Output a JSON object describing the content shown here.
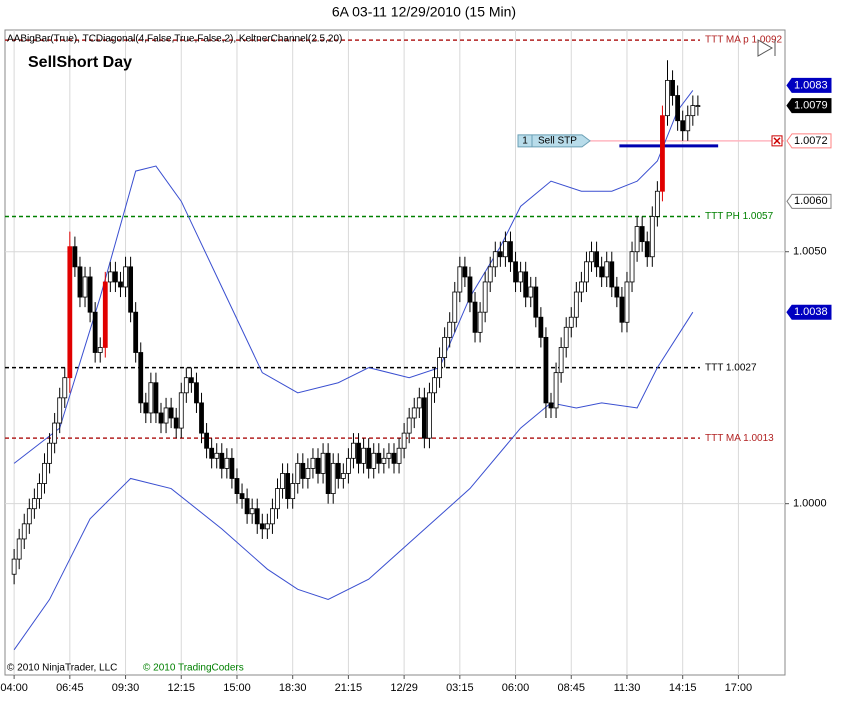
{
  "chart_data": {
    "type": "candlestick",
    "title": "6A 03-11  12/29/2010 (15 Min)",
    "indicators": "AABigBar(True), TCDiagonal(4,False,True,False,2), KeltnerChannel(2.5,20)",
    "strategy": "SellShort Day",
    "copyright": "© 2010 NinjaTrader, LLC",
    "vendor": "© 2010 TradingCoders",
    "xlim": [
      -1.8,
      152.2
    ],
    "xticks": [
      {
        "value": 0,
        "label": "04:00"
      },
      {
        "value": 11,
        "label": "06:45"
      },
      {
        "value": 22,
        "label": "09:30"
      },
      {
        "value": 33,
        "label": "12:15"
      },
      {
        "value": 44,
        "label": "15:00"
      },
      {
        "value": 55,
        "label": "18:30"
      },
      {
        "value": 66,
        "label": "21:15"
      },
      {
        "value": 77,
        "label": "12/29"
      },
      {
        "value": 88,
        "label": "03:15"
      },
      {
        "value": 99,
        "label": "06:00"
      },
      {
        "value": 110,
        "label": "08:45"
      },
      {
        "value": 121,
        "label": "11:30"
      },
      {
        "value": 132,
        "label": "14:15"
      },
      {
        "value": 143,
        "label": "17:00"
      }
    ],
    "ylim": [
      0.9966,
      1.0094
    ],
    "yticks": [
      {
        "value": 1.005,
        "label": "1.0050"
      },
      {
        "value": 1,
        "label": "1.0000"
      }
    ],
    "grid": true,
    "up_color": "#ffffff",
    "down_color": "#000000",
    "highlight_color": "#e00000",
    "highlight": [
      11,
      18,
      128
    ],
    "open": [
      0.9986,
      0.9989,
      0.9993,
      0.9996,
      0.9999,
      1.0001,
      1.0004,
      1.0008,
      1.0012,
      1.0016,
      1.0021,
      1.0025,
      1.0051,
      1.0047,
      1.0041,
      1.0045,
      1.0038,
      1.003,
      1.0031,
      1.0044,
      1.0046,
      1.0044,
      1.0043,
      1.0047,
      1.0038,
      1.003,
      1.002,
      1.0018,
      1.0024,
      1.0018,
      1.0016,
      1.0019,
      1.0017,
      1.0015,
      1.0022,
      1.0025,
      1.0024,
      1.002,
      1.0014,
      1.0011,
      1.0009,
      1.001,
      1.0007,
      1.0009,
      1.0005,
      1.0002,
      1.0001,
      0.9998,
      0.9999,
      0.9996,
      0.9995,
      0.9996,
      0.9999,
      1.0003,
      1.0006,
      1.0001,
      1.0004,
      1.0008,
      1.0005,
      1.0007,
      1.0009,
      1.0006,
      1.001,
      1.0002,
      1.0008,
      1.0005,
      1.0006,
      1.0009,
      1.0012,
      1.0008,
      1.0011,
      1.0007,
      1.001,
      1.0008,
      1.0009,
      1.001,
      1.0008,
      1.0011,
      1.0014,
      1.0017,
      1.0019,
      1.0021,
      1.0013,
      1.0022,
      1.0025,
      1.0029,
      1.0033,
      1.0036,
      1.0042,
      1.0047,
      1.0045,
      1.004,
      1.0034,
      1.0038,
      1.0044,
      1.0047,
      1.005,
      1.0049,
      1.0052,
      1.0048,
      1.0044,
      1.0046,
      1.0041,
      1.0043,
      1.0037,
      1.0033,
      1.002,
      1.0019,
      1.0026,
      1.0031,
      1.0035,
      1.0037,
      1.0042,
      1.0044,
      1.0048,
      1.005,
      1.0047,
      1.0045,
      1.0048,
      1.0043,
      1.0041,
      1.0036,
      1.0044,
      1.005,
      1.0055,
      1.0052,
      1.0049,
      1.0057,
      1.0062,
      1.0077,
      1.0084,
      1.0081,
      1.0076,
      1.0074,
      1.0077,
      1.0079
    ],
    "high": [
      0.9991,
      0.9995,
      0.9998,
      1.0001,
      1.0003,
      1.0006,
      1.001,
      1.0014,
      1.0018,
      1.0023,
      1.0027,
      1.0054,
      1.0053,
      1.0049,
      1.0047,
      1.0047,
      1.004,
      1.0033,
      1.0046,
      1.0048,
      1.0048,
      1.0046,
      1.0049,
      1.0049,
      1.004,
      1.0032,
      1.0022,
      1.0026,
      1.0026,
      1.002,
      1.0021,
      1.0021,
      1.0019,
      1.0024,
      1.0027,
      1.0027,
      1.0026,
      1.0022,
      1.0016,
      1.0013,
      1.0012,
      1.0012,
      1.0011,
      1.0011,
      1.0007,
      1.0004,
      1.0003,
      1.0001,
      1.0001,
      0.9998,
      0.9998,
      1.0001,
      1.0005,
      1.0008,
      1.0008,
      1.0006,
      1.001,
      1.001,
      1.0009,
      1.0011,
      1.0011,
      1.0012,
      1.0012,
      1.001,
      1.001,
      1.0008,
      1.0011,
      1.0014,
      1.0014,
      1.0013,
      1.0013,
      1.0012,
      1.0012,
      1.0011,
      1.0012,
      1.0012,
      1.0013,
      1.0016,
      1.0019,
      1.0021,
      1.0023,
      1.0023,
      1.0024,
      1.0027,
      1.0031,
      1.0035,
      1.0038,
      1.0044,
      1.0049,
      1.0049,
      1.0047,
      1.0042,
      1.004,
      1.0046,
      1.0049,
      1.0052,
      1.0052,
      1.0054,
      1.0054,
      1.005,
      1.0048,
      1.0048,
      1.0045,
      1.0045,
      1.0039,
      1.0035,
      1.0022,
      1.0028,
      1.0033,
      1.0037,
      1.0039,
      1.0044,
      1.0046,
      1.005,
      1.0052,
      1.0052,
      1.0049,
      1.005,
      1.005,
      1.0045,
      1.0043,
      1.0046,
      1.0052,
      1.0057,
      1.0057,
      1.0054,
      1.0059,
      1.0064,
      1.0079,
      1.0088,
      1.0086,
      1.0083,
      1.0078,
      1.0079,
      1.0081,
      1.0081
    ],
    "low": [
      0.9984,
      0.9987,
      0.9991,
      0.9994,
      0.9997,
      0.9999,
      1.0002,
      1.0006,
      1.001,
      1.0014,
      1.0019,
      1.0022,
      1.0045,
      1.0039,
      1.0039,
      1.0036,
      1.0028,
      1.0028,
      1.0029,
      1.0042,
      1.0042,
      1.0041,
      1.0041,
      1.0036,
      1.0028,
      1.0018,
      1.0016,
      1.0016,
      1.0016,
      1.0014,
      1.0014,
      1.0015,
      1.0013,
      1.0013,
      1.002,
      1.0022,
      1.0018,
      1.0012,
      1.0009,
      1.0007,
      1.0007,
      1.0005,
      1.0005,
      1.0003,
      1.0,
      0.9999,
      0.9996,
      0.9996,
      0.9994,
      0.9993,
      0.9993,
      0.9994,
      0.9997,
      1.0001,
      0.9999,
      0.9999,
      1.0002,
      1.0003,
      1.0003,
      1.0005,
      1.0004,
      1.0004,
      1.0,
      1.0,
      1.0003,
      1.0003,
      1.0004,
      1.0007,
      1.0006,
      1.0006,
      1.0005,
      1.0005,
      1.0006,
      1.0006,
      1.0007,
      1.0006,
      1.0006,
      1.0009,
      1.0012,
      1.0015,
      1.0017,
      1.0011,
      1.0011,
      1.002,
      1.0023,
      1.0027,
      1.0031,
      1.0034,
      1.004,
      1.0043,
      1.0038,
      1.0032,
      1.0032,
      1.0036,
      1.0042,
      1.0045,
      1.0047,
      1.0047,
      1.0046,
      1.0042,
      1.0042,
      1.0039,
      1.0039,
      1.0035,
      1.0031,
      1.0017,
      1.0017,
      1.0017,
      1.0024,
      1.0029,
      1.0033,
      1.0035,
      1.004,
      1.0042,
      1.0046,
      1.0045,
      1.0043,
      1.0043,
      1.0041,
      1.0039,
      1.0034,
      1.0034,
      1.0042,
      1.0048,
      1.005,
      1.0047,
      1.0047,
      1.0055,
      1.006,
      1.0075,
      1.0079,
      1.0074,
      1.0072,
      1.0072,
      1.0075,
      1.0077
    ],
    "close": [
      0.9989,
      0.9993,
      0.9996,
      0.9999,
      1.0001,
      1.0004,
      1.0008,
      1.0012,
      1.0016,
      1.0021,
      1.0025,
      1.0051,
      1.0047,
      1.0041,
      1.0045,
      1.0038,
      1.003,
      1.0031,
      1.0044,
      1.0046,
      1.0044,
      1.0043,
      1.0047,
      1.0038,
      1.003,
      1.002,
      1.0018,
      1.0024,
      1.0018,
      1.0016,
      1.0019,
      1.0017,
      1.0015,
      1.0022,
      1.0025,
      1.0024,
      1.002,
      1.0014,
      1.0011,
      1.0009,
      1.001,
      1.0007,
      1.0009,
      1.0005,
      1.0002,
      1.0001,
      0.9998,
      0.9999,
      0.9996,
      0.9995,
      0.9996,
      0.9999,
      1.0003,
      1.0006,
      1.0001,
      1.0004,
      1.0008,
      1.0005,
      1.0007,
      1.0009,
      1.0006,
      1.001,
      1.0002,
      1.0008,
      1.0005,
      1.0006,
      1.0009,
      1.0012,
      1.0008,
      1.0011,
      1.0007,
      1.001,
      1.0008,
      1.0009,
      1.001,
      1.0008,
      1.0011,
      1.0014,
      1.0017,
      1.0019,
      1.0021,
      1.0013,
      1.0022,
      1.0025,
      1.0029,
      1.0033,
      1.0036,
      1.0042,
      1.0047,
      1.0045,
      1.004,
      1.0034,
      1.0038,
      1.0044,
      1.0047,
      1.005,
      1.0049,
      1.0052,
      1.0048,
      1.0044,
      1.0046,
      1.0041,
      1.0043,
      1.0037,
      1.0033,
      1.002,
      1.0019,
      1.0026,
      1.0031,
      1.0035,
      1.0037,
      1.0042,
      1.0044,
      1.0048,
      1.005,
      1.0047,
      1.0045,
      1.0048,
      1.0043,
      1.0041,
      1.0036,
      1.0044,
      1.005,
      1.0055,
      1.0052,
      1.0049,
      1.0057,
      1.0062,
      1.0077,
      1.0084,
      1.0081,
      1.0076,
      1.0074,
      1.0077,
      1.0079,
      1.0079
    ],
    "series": [
      {
        "color": "#3a4fd0",
        "x": [
          0,
          9,
          17,
          24,
          28,
          33,
          41,
          49,
          56,
          64,
          70,
          78,
          84,
          90,
          96,
          100,
          106,
          112,
          118,
          123,
          127,
          131,
          134
        ],
        "values": [
          1.0008,
          1.0015,
          1.0041,
          1.0066,
          1.0067,
          1.006,
          1.0043,
          1.0026,
          1.0022,
          1.0024,
          1.0027,
          1.0025,
          1.0027,
          1.0041,
          1.0051,
          1.0059,
          1.0064,
          1.0062,
          1.0062,
          1.0064,
          1.0068,
          1.0078,
          1.0082
        ]
      },
      {
        "color": "#3a4fd0",
        "x": [
          0,
          7,
          15,
          23,
          31,
          41,
          50,
          56,
          62,
          70,
          80,
          90,
          100,
          106,
          111,
          116,
          123,
          127,
          134
        ],
        "values": [
          0.9971,
          0.9981,
          0.9997,
          1.0005,
          1.0003,
          0.9995,
          0.9987,
          0.9983,
          0.9981,
          0.9985,
          0.9994,
          1.0003,
          1.0015,
          1.002,
          1.0019,
          1.002,
          1.0019,
          1.0027,
          1.0038
        ]
      }
    ],
    "levels": [
      {
        "value": 1.0092,
        "label": "TTT MA p 1.0092",
        "color": "#b22222"
      },
      {
        "value": 1.0057,
        "label": "TTT PH 1.0057",
        "color": "#008000"
      },
      {
        "value": 1.0027,
        "label": "TTT  1.0027",
        "color": "#000000"
      },
      {
        "value": 1.0013,
        "label": "TTT MA 1.0013",
        "color": "#b22222"
      }
    ],
    "order": {
      "value": 1.0072,
      "qty": 1,
      "label": "Sell STP",
      "color": "#ffb6c1"
    },
    "stop_line": {
      "value": 1.0071,
      "x": [
        119.5,
        139
      ],
      "color": "#0000b0"
    },
    "price_markers": [
      {
        "value": 1.0083,
        "bg": "#0000c0",
        "fg": "#ffffff"
      },
      {
        "value": 1.0079,
        "bg": "#000000",
        "fg": "#ffffff"
      },
      {
        "value": 1.0072,
        "bg": "#ffffff",
        "fg": "#000000",
        "border": "#ff8080"
      },
      {
        "value": 1.006,
        "label": "1.0060",
        "bg": "#ffffff",
        "fg": "#000000",
        "border": "#808080"
      },
      {
        "value": 1.0038,
        "bg": "#0000c0",
        "fg": "#ffffff"
      }
    ]
  }
}
